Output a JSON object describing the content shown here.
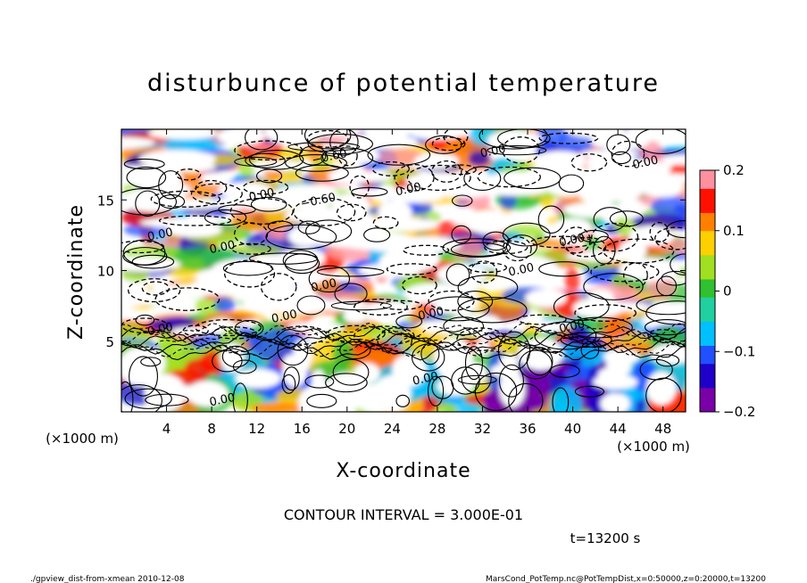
{
  "chart_data": {
    "type": "heatmap",
    "title": "disturbunce of potential temperature",
    "xlabel": "X-coordinate",
    "ylabel": "Z-coordinate",
    "x_unit": "(×1000 m)",
    "y_unit": "(×1000 m)",
    "xlim": [
      0,
      50
    ],
    "ylim": [
      0,
      20
    ],
    "x_ticks": [
      4,
      8,
      12,
      16,
      20,
      24,
      28,
      32,
      36,
      40,
      44,
      48
    ],
    "y_ticks": [
      5,
      10,
      15
    ],
    "colorbar": {
      "min": -0.2,
      "max": 0.2,
      "ticks": [
        {
          "value": 0.2,
          "label": "0.2"
        },
        {
          "value": 0.1,
          "label": "0.1"
        },
        {
          "value": 0.0,
          "label": "0"
        },
        {
          "value": -0.1,
          "label": "−0.1"
        },
        {
          "value": -0.2,
          "label": "−0.2"
        }
      ],
      "colors": [
        "#7a00a8",
        "#1e00c8",
        "#2050ff",
        "#00c0ff",
        "#20d0a0",
        "#30c030",
        "#a0e020",
        "#ffd000",
        "#ff8000",
        "#ff1000",
        "#ff90a0"
      ]
    },
    "contour_interval": "CONTOUR INTERVAL = 3.000E-01",
    "contour_labels": [
      {
        "x": 18.5,
        "z": 17.8,
        "text": "−0.60"
      },
      {
        "x": 33.0,
        "z": 18.2,
        "text": "0.00"
      },
      {
        "x": 46.5,
        "z": 17.4,
        "text": "0.00"
      },
      {
        "x": 12.5,
        "z": 15.1,
        "text": "0.00"
      },
      {
        "x": 25.5,
        "z": 15.5,
        "text": "0.00"
      },
      {
        "x": 17.5,
        "z": 14.7,
        "text": "−0.60"
      },
      {
        "x": 3.5,
        "z": 12.3,
        "text": "0.00"
      },
      {
        "x": 9.0,
        "z": 11.4,
        "text": "0.00"
      },
      {
        "x": 40.0,
        "z": 11.9,
        "text": "0.00"
      },
      {
        "x": 35.5,
        "z": 9.8,
        "text": "0.00"
      },
      {
        "x": 18.0,
        "z": 8.7,
        "text": "0.00"
      },
      {
        "x": 14.5,
        "z": 6.5,
        "text": "0.00"
      },
      {
        "x": 27.5,
        "z": 6.7,
        "text": "0.00"
      },
      {
        "x": 40.0,
        "z": 5.8,
        "text": "0.00"
      },
      {
        "x": 3.5,
        "z": 5.6,
        "text": "0.00"
      },
      {
        "x": 9.0,
        "z": 0.6,
        "text": "0.00"
      },
      {
        "x": 27.0,
        "z": 2.1,
        "text": "0.00"
      }
    ]
  },
  "time_label": "t=13200 s",
  "footer": {
    "left": "./gpview_dist-from-xmean  2010-12-08",
    "right": "MarsCond_PotTemp.nc@PotTempDist,x=0:50000,z=0:20000,t=13200"
  }
}
